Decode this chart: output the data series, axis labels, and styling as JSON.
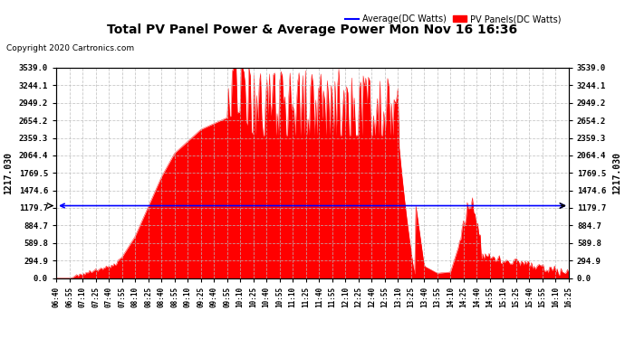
{
  "title": "Total PV Panel Power & Average Power Mon Nov 16 16:36",
  "copyright": "Copyright 2020 Cartronics.com",
  "legend_avg": "Average(DC Watts)",
  "legend_pv": "PV Panels(DC Watts)",
  "avg_value": 1217.03,
  "yticks": [
    0.0,
    294.9,
    589.8,
    884.7,
    1179.7,
    1474.6,
    1769.5,
    2064.4,
    2359.3,
    2654.2,
    2949.2,
    3244.1,
    3539.0
  ],
  "ymax": 3539.0,
  "ymin": 0.0,
  "background_color": "#ffffff",
  "fill_color": "#ff0000",
  "avg_line_color": "#0000ff",
  "grid_color": "#bbbbbb",
  "title_color": "#000000",
  "copyright_color": "#000000",
  "legend_avg_color": "#0000ff",
  "legend_pv_color": "#ff0000",
  "rotated_label": "1217.030",
  "xtick_labels": [
    "06:40",
    "06:55",
    "07:10",
    "07:25",
    "07:40",
    "07:55",
    "08:10",
    "08:25",
    "08:40",
    "08:55",
    "09:10",
    "09:25",
    "09:40",
    "09:55",
    "10:10",
    "10:25",
    "10:40",
    "10:55",
    "11:10",
    "11:25",
    "11:40",
    "11:55",
    "12:10",
    "12:25",
    "12:40",
    "12:55",
    "13:10",
    "13:25",
    "13:40",
    "13:55",
    "14:10",
    "14:25",
    "14:40",
    "14:55",
    "15:10",
    "15:25",
    "15:40",
    "15:55",
    "16:10",
    "16:25"
  ]
}
